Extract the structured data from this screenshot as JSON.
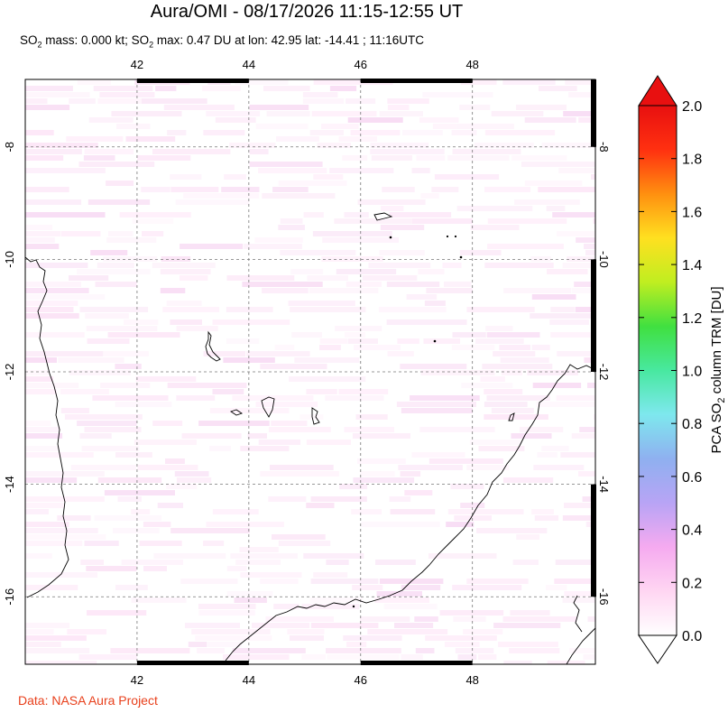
{
  "header": {
    "title": "Aura/OMI - 08/17/2026 11:15-12:55 UT",
    "subtitle_parts": [
      "SO",
      "2",
      " mass: 0.000 kt; SO",
      "2",
      " max: 0.47 DU at lon: 42.95 lat: -14.41 ; 11:16UTC"
    ]
  },
  "footer": {
    "credit": "Data: NASA Aura Project"
  },
  "map": {
    "lon_range": [
      40.0,
      50.2
    ],
    "lat_range": [
      -17.2,
      -6.8
    ],
    "lon_ticks": [
      42,
      44,
      46,
      48
    ],
    "lat_ticks": [
      -8,
      -10,
      -12,
      -14,
      -16
    ],
    "lon_tick_labels": [
      "42",
      "44",
      "46",
      "48"
    ],
    "lat_tick_labels": [
      "-8",
      "-10",
      "-12",
      "-14",
      "-16"
    ],
    "grid": true
  },
  "colorbar": {
    "label_parts": [
      "PCA SO",
      "2",
      " column TRM [DU]"
    ],
    "min": 0.0,
    "max": 2.0,
    "ticks": [
      0.0,
      0.2,
      0.4,
      0.6,
      0.8,
      1.0,
      1.2,
      1.4,
      1.6,
      1.8,
      2.0
    ],
    "tick_labels": [
      "0.0",
      "0.2",
      "0.4",
      "0.6",
      "0.8",
      "1.0",
      "1.2",
      "1.4",
      "1.6",
      "1.8",
      "2.0"
    ],
    "colors": [
      "#ffffff",
      "#ffd6f2",
      "#f5aaf0",
      "#b8a4f5",
      "#8fb0f0",
      "#7ee8ee",
      "#48e8a0",
      "#40e040",
      "#c0ee20",
      "#ffe020",
      "#ff9010",
      "#ff3010",
      "#e81010"
    ]
  }
}
